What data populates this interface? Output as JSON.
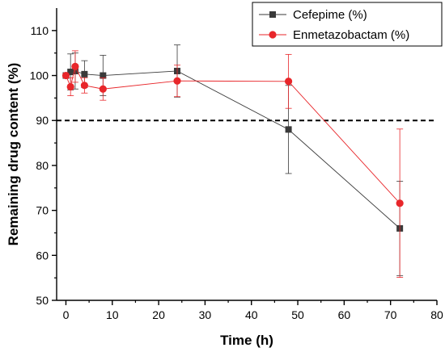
{
  "chart_data": {
    "type": "line",
    "xlabel": "Time (h)",
    "ylabel": "Remaining drug content (%)",
    "xlim": [
      -2,
      80
    ],
    "ylim": [
      50,
      115
    ],
    "xticks": [
      0,
      10,
      20,
      30,
      40,
      50,
      60,
      70,
      80
    ],
    "yticks": [
      50,
      60,
      70,
      80,
      90,
      100,
      110
    ],
    "grid": false,
    "legend_position": "top-right",
    "reference_line": {
      "y": 90,
      "style": "dashed"
    },
    "series": [
      {
        "name": "Cefepime (%)",
        "marker": "square",
        "color": "#3a3a3a",
        "x": [
          0,
          1,
          2,
          4,
          8,
          24,
          48,
          72
        ],
        "y": [
          100,
          100.8,
          101,
          100.3,
          100,
          101,
          88,
          66
        ],
        "error": [
          0,
          4,
          4,
          3,
          4.5,
          5.8,
          9.8,
          10.5
        ]
      },
      {
        "name": "Enmetazobactam (%)",
        "marker": "circle",
        "color": "#e8262a",
        "x": [
          0,
          1,
          2,
          4,
          8,
          24,
          48,
          72
        ],
        "y": [
          100,
          97.5,
          102,
          97.8,
          97,
          98.8,
          98.7,
          71.6
        ],
        "error": [
          0,
          2,
          3.5,
          1.7,
          2.5,
          3.5,
          6,
          16.5
        ]
      }
    ]
  }
}
